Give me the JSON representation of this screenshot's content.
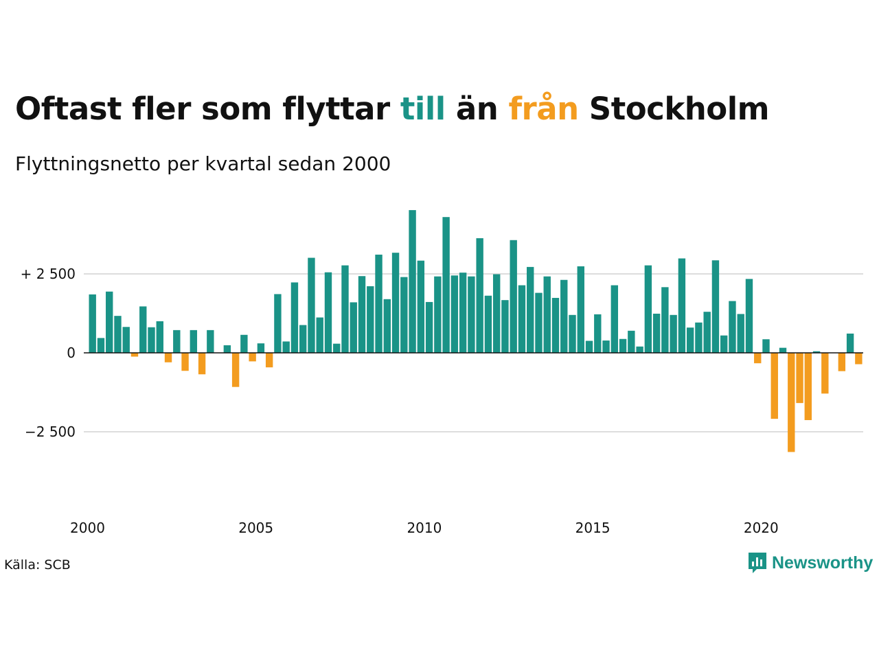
{
  "title": {
    "part1": "Oftast fler som flyttar ",
    "till": "till",
    "part2": " än ",
    "fran": "från",
    "part3": " Stockholm"
  },
  "subtitle": "Flyttningsnetto per kvartal sedan 2000",
  "source": "Källa: SCB",
  "brand": "Newsworthy",
  "colors": {
    "positive": "#1a9387",
    "negative": "#f39c1f",
    "grid": "#dddddd",
    "text": "#111111"
  },
  "chart_data": {
    "type": "bar",
    "ylim": [
      -4000,
      4600
    ],
    "yticks": [
      {
        "value": 2500,
        "label": "+ 2 500"
      },
      {
        "value": 0,
        "label": "0"
      },
      {
        "value": -2500,
        "label": "−2 500"
      }
    ],
    "xticks": [
      {
        "year": 2000,
        "label": "2000"
      },
      {
        "year": 2005,
        "label": "2005"
      },
      {
        "year": 2010,
        "label": "2010"
      },
      {
        "year": 2015,
        "label": "2015"
      },
      {
        "year": 2020,
        "label": "2020"
      }
    ],
    "start_year": 2000,
    "grid": true,
    "values": [
      1850,
      470,
      1940,
      1170,
      820,
      -120,
      1470,
      810,
      1000,
      -300,
      720,
      -570,
      720,
      -680,
      720,
      0,
      240,
      -1080,
      570,
      -270,
      300,
      -460,
      1860,
      360,
      2230,
      880,
      3010,
      1120,
      2550,
      290,
      2770,
      1600,
      2430,
      2110,
      3110,
      1700,
      3170,
      2400,
      4520,
      2920,
      1610,
      2420,
      4300,
      2450,
      2540,
      2420,
      3630,
      1810,
      2490,
      1670,
      3570,
      2140,
      2720,
      1900,
      2420,
      1740,
      2310,
      1200,
      2740,
      380,
      1220,
      390,
      2140,
      440,
      700,
      200,
      2770,
      1240,
      2080,
      1200,
      2990,
      800,
      960,
      1300,
      2930,
      550,
      1640,
      1230,
      2340,
      -330,
      430,
      -2090,
      160,
      -3140,
      -1590,
      -2130,
      50,
      -1290,
      0,
      -580,
      610,
      -360
    ]
  }
}
